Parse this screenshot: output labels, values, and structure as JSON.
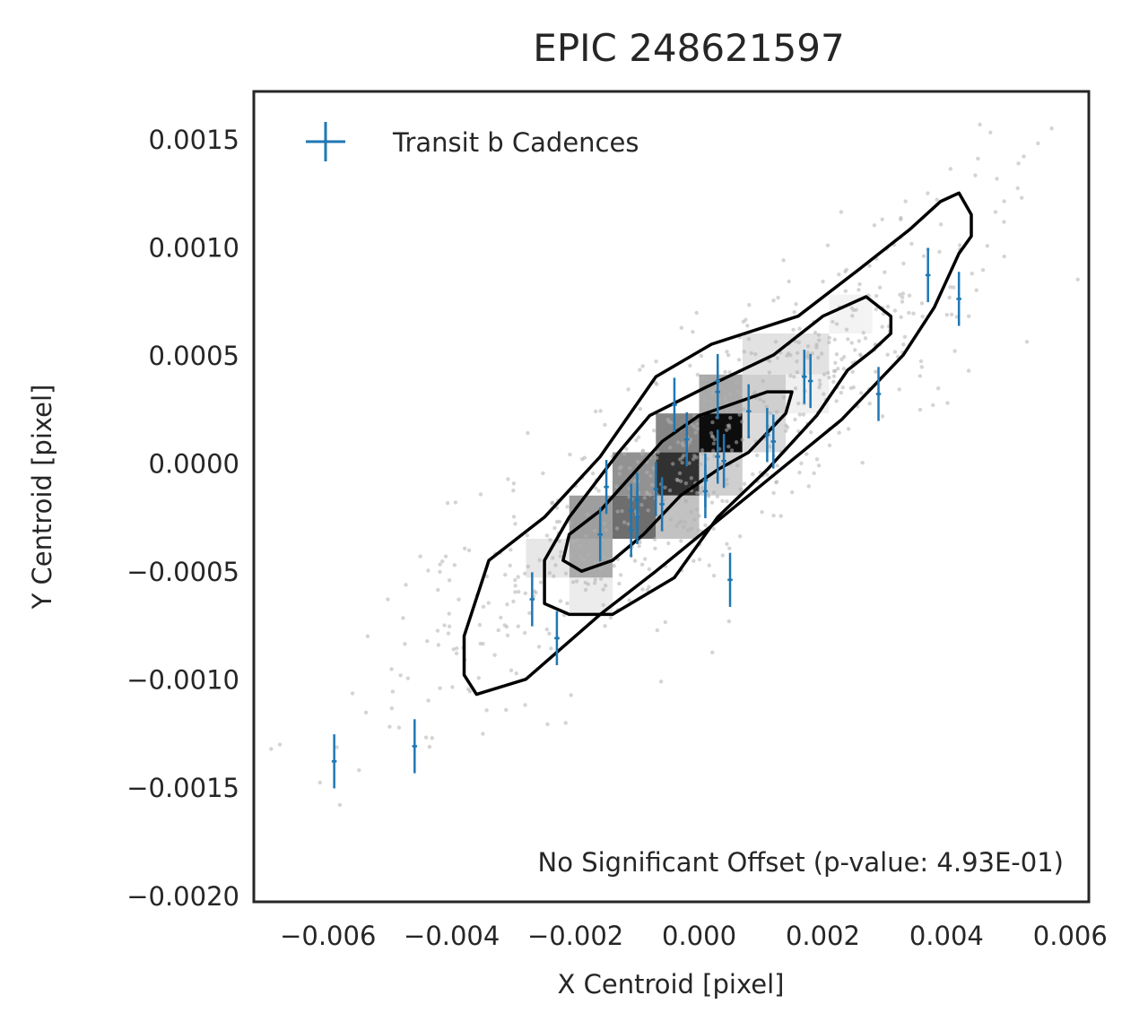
{
  "chart_data": {
    "type": "scatter",
    "title": "EPIC 248621597",
    "xlabel": "X Centroid [pixel]",
    "ylabel": "Y Centroid [pixel]",
    "xlim": [
      -0.0072,
      0.0063
    ],
    "ylim": [
      -0.00203,
      0.00172
    ],
    "xticks": [
      -0.006,
      -0.004,
      -0.002,
      0.0,
      0.002,
      0.004,
      0.006
    ],
    "xtick_labels": [
      "−0.006",
      "−0.004",
      "−0.002",
      "0.000",
      "0.002",
      "0.004",
      "0.006"
    ],
    "yticks": [
      0.0015,
      0.001,
      0.0005,
      0.0,
      -0.0005,
      -0.001,
      -0.0015,
      -0.002
    ],
    "ytick_labels": [
      "0.0015",
      "0.0010",
      "0.0005",
      "0.0000",
      "−0.0005",
      "−0.0010",
      "−0.0015",
      "−0.0020"
    ],
    "grid": false,
    "legend": {
      "placement": "top-left",
      "entries": [
        "Transit b Cadences"
      ]
    },
    "annotation": "No Significant Offset (p-value: 4.93E-01)",
    "colors": {
      "transit": "#1f77b4",
      "contour": "#000000",
      "scatter": "#b0b0b0",
      "axes": "#262626"
    },
    "histogram_2d": {
      "description_cells": [
        {
          "x": [
            0.0,
            0.0007
          ],
          "y": [
            5e-05,
            0.00023
          ],
          "level": 1.0
        },
        {
          "x": [
            -0.0007,
            0.0
          ],
          "y": [
            -0.00015,
            5e-05
          ],
          "level": 0.85
        },
        {
          "x": [
            -0.0014,
            -0.0007
          ],
          "y": [
            -0.00035,
            -0.00015
          ],
          "level": 0.6
        },
        {
          "x": [
            -0.0021,
            -0.0014
          ],
          "y": [
            -0.00053,
            -0.00035
          ],
          "level": 0.35
        },
        {
          "x": [
            -0.0014,
            -0.0007
          ],
          "y": [
            -0.00015,
            5e-05
          ],
          "level": 0.45
        },
        {
          "x": [
            -0.0007,
            0.0
          ],
          "y": [
            5e-05,
            0.00023
          ],
          "level": 0.5
        },
        {
          "x": [
            0.0,
            0.0007
          ],
          "y": [
            0.00023,
            0.00041
          ],
          "level": 0.35
        },
        {
          "x": [
            -0.0007,
            0.0
          ],
          "y": [
            -0.00035,
            -0.00015
          ],
          "level": 0.25
        },
        {
          "x": [
            0.0007,
            0.0014
          ],
          "y": [
            0.00023,
            0.00041
          ],
          "level": 0.2
        },
        {
          "x": [
            0.0007,
            0.0014
          ],
          "y": [
            0.00041,
            0.0006
          ],
          "level": 0.12
        },
        {
          "x": [
            0.0014,
            0.0021
          ],
          "y": [
            0.00041,
            0.0006
          ],
          "level": 0.12
        },
        {
          "x": [
            -0.0021,
            -0.0014
          ],
          "y": [
            -0.00035,
            -0.00015
          ],
          "level": 0.4
        },
        {
          "x": [
            -0.0028,
            -0.0021
          ],
          "y": [
            -0.00053,
            -0.00035
          ],
          "level": 0.1
        },
        {
          "x": [
            -0.0021,
            -0.0014
          ],
          "y": [
            -0.0007,
            -0.00053
          ],
          "level": 0.08
        },
        {
          "x": [
            0.0014,
            0.0021
          ],
          "y": [
            0.00023,
            0.00041
          ],
          "level": 0.06
        },
        {
          "x": [
            0.0021,
            0.0028
          ],
          "y": [
            0.0006,
            0.00078
          ],
          "level": 0.05
        },
        {
          "x": [
            0.0,
            0.0007
          ],
          "y": [
            -0.00015,
            5e-05
          ],
          "level": 0.2
        },
        {
          "x": [
            0.0007,
            0.0014
          ],
          "y": [
            5e-05,
            0.00023
          ],
          "level": 0.15
        }
      ]
    },
    "contours": [
      [
        [
          -0.0036,
          -0.00107
        ],
        [
          -0.0028,
          -0.001
        ],
        [
          -0.0016,
          -0.0007
        ],
        [
          -0.0007,
          -0.0005
        ],
        [
          0.0008,
          -0.00015
        ],
        [
          0.0023,
          0.0002
        ],
        [
          0.0033,
          0.0005
        ],
        [
          0.0038,
          0.00072
        ],
        [
          0.0042,
          0.00097
        ],
        [
          0.0044,
          0.00105
        ],
        [
          0.0044,
          0.00115
        ],
        [
          0.0042,
          0.00125
        ],
        [
          0.0039,
          0.00121
        ],
        [
          0.0034,
          0.00108
        ],
        [
          0.0026,
          0.0009
        ],
        [
          0.0016,
          0.00068
        ],
        [
          0.0002,
          0.00055
        ],
        [
          -0.0007,
          0.0004
        ],
        [
          -0.0016,
          3e-05
        ],
        [
          -0.0025,
          -0.00025
        ],
        [
          -0.0034,
          -0.00045
        ],
        [
          -0.0038,
          -0.0008
        ],
        [
          -0.0038,
          -0.00098
        ],
        [
          -0.0036,
          -0.00107
        ]
      ],
      [
        [
          -0.0025,
          -0.00065
        ],
        [
          -0.0021,
          -0.0007
        ],
        [
          -0.0014,
          -0.0007
        ],
        [
          -0.0004,
          -0.00053
        ],
        [
          0.0003,
          -0.00025
        ],
        [
          0.0011,
          -3e-05
        ],
        [
          0.0019,
          0.00022
        ],
        [
          0.0024,
          0.00043
        ],
        [
          0.0028,
          0.00052
        ],
        [
          0.0031,
          0.0006
        ],
        [
          0.0031,
          0.00068
        ],
        [
          0.0027,
          0.00077
        ],
        [
          0.002,
          0.00068
        ],
        [
          0.0012,
          0.0005
        ],
        [
          0.0001,
          0.00035
        ],
        [
          -0.0008,
          0.00022
        ],
        [
          -0.0013,
          5e-05
        ],
        [
          -0.0021,
          -0.00025
        ],
        [
          -0.0025,
          -0.00045
        ],
        [
          -0.0025,
          -0.00065
        ]
      ],
      [
        [
          -0.0022,
          -0.00045
        ],
        [
          -0.0019,
          -0.0005
        ],
        [
          -0.0014,
          -0.00045
        ],
        [
          -0.0009,
          -0.00033
        ],
        [
          -0.0003,
          -0.00015
        ],
        [
          0.0003,
          -3e-05
        ],
        [
          0.0008,
          5e-05
        ],
        [
          0.0014,
          0.00023
        ],
        [
          0.0015,
          0.00033
        ],
        [
          0.0011,
          0.00033
        ],
        [
          0.0006,
          0.00028
        ],
        [
          0.0,
          0.00022
        ],
        [
          -0.0006,
          0.0001
        ],
        [
          -0.0011,
          -6e-05
        ],
        [
          -0.0016,
          -0.00022
        ],
        [
          -0.0021,
          -0.00033
        ],
        [
          -0.0022,
          -0.00045
        ]
      ]
    ],
    "transit_points": [
      {
        "x": -0.0059,
        "y": -0.00138
      },
      {
        "x": -0.0046,
        "y": -0.00131
      },
      {
        "x": -0.0027,
        "y": -0.00063
      },
      {
        "x": -0.0023,
        "y": -0.00081
      },
      {
        "x": -0.0016,
        "y": -0.00033
      },
      {
        "x": -0.0015,
        "y": -0.00011
      },
      {
        "x": -0.0011,
        "y": -0.00022
      },
      {
        "x": -0.0011,
        "y": -0.00031
      },
      {
        "x": -0.001,
        "y": -0.00025
      },
      {
        "x": -0.001,
        "y": -0.00017
      },
      {
        "x": -0.0007,
        "y": -0.00012
      },
      {
        "x": -0.0006,
        "y": -0.00019
      },
      {
        "x": -0.0004,
        "y": 0.00027
      },
      {
        "x": -0.0002,
        "y": 0.00011
      },
      {
        "x": 0.0001,
        "y": -8e-05
      },
      {
        "x": 0.0001,
        "y": -0.00013
      },
      {
        "x": 0.0003,
        "y": 3e-05
      },
      {
        "x": 0.0003,
        "y": 0.00033
      },
      {
        "x": 0.0003,
        "y": 0.00038
      },
      {
        "x": 0.0004,
        "y": 1e-05
      },
      {
        "x": 0.0005,
        "y": -0.00054
      },
      {
        "x": 0.0008,
        "y": 0.00024
      },
      {
        "x": 0.0011,
        "y": 0.00013
      },
      {
        "x": 0.0012,
        "y": 0.0001
      },
      {
        "x": 0.0017,
        "y": 0.0004
      },
      {
        "x": 0.0018,
        "y": 0.00038
      },
      {
        "x": 0.0029,
        "y": 0.00032
      },
      {
        "x": 0.0037,
        "y": 0.00087
      },
      {
        "x": 0.0042,
        "y": 0.00076
      }
    ],
    "transit_errors": {
      "x": 4e-05,
      "y": 5e-05
    }
  }
}
